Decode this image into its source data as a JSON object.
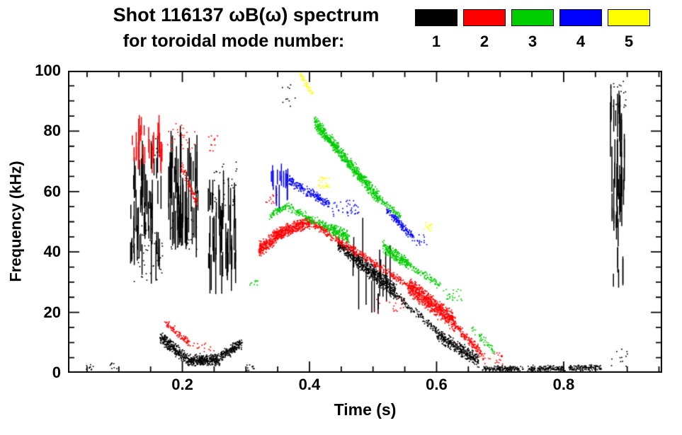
{
  "title": {
    "line1": "Shot 116137 ωB(ω) spectrum",
    "line2": "for toroidal mode number:"
  },
  "legend": {
    "modes": [
      {
        "label": "1",
        "color": "#000000"
      },
      {
        "label": "2",
        "color": "#ff0000"
      },
      {
        "label": "3",
        "color": "#00cc00"
      },
      {
        "label": "4",
        "color": "#0000ff"
      },
      {
        "label": "5",
        "color": "#ffff00"
      }
    ]
  },
  "chart_data": {
    "type": "scatter",
    "title": "Shot 116137 ωB(ω) spectrum for toroidal mode number 1-5",
    "xlabel": "Time (s)",
    "ylabel": "Frequency (kHz)",
    "xlim": [
      0.02,
      0.955
    ],
    "ylim": [
      0,
      100
    ],
    "x_ticks": [
      {
        "v": 0.2,
        "label": "0.2"
      },
      {
        "v": 0.4,
        "label": "0.4"
      },
      {
        "v": 0.6,
        "label": "0.6"
      },
      {
        "v": 0.8,
        "label": "0.8"
      }
    ],
    "x_minor_step": 0.05,
    "y_ticks": [
      {
        "v": 0,
        "label": "0"
      },
      {
        "v": 20,
        "label": "20"
      },
      {
        "v": 40,
        "label": "40"
      },
      {
        "v": 60,
        "label": "60"
      },
      {
        "v": 80,
        "label": "80"
      },
      {
        "v": 100,
        "label": "100"
      }
    ],
    "y_minor_step": 5,
    "series": [
      {
        "name": "n=1",
        "color": "#000000",
        "features": [
          {
            "k": "dots",
            "t": [
              0.045,
              0.062
            ],
            "f": [
              1,
              3
            ],
            "n": 10
          },
          {
            "k": "dots",
            "t": [
              0.085,
              0.1
            ],
            "f": [
              1,
              4
            ],
            "n": 8
          },
          {
            "k": "streaks",
            "t": [
              0.118,
              0.168
            ],
            "f": [
              34,
              74
            ],
            "n": 55,
            "l": [
              4,
              16
            ]
          },
          {
            "k": "dots",
            "t": [
              0.118,
              0.168
            ],
            "f": [
              30,
              50
            ],
            "n": 40
          },
          {
            "k": "dots",
            "t": [
              0.148,
              0.166
            ],
            "f": [
              70,
              79
            ],
            "n": 10
          },
          {
            "k": "streaks",
            "t": [
              0.178,
              0.225
            ],
            "f": [
              46,
              74
            ],
            "n": 60,
            "l": [
              5,
              18
            ]
          },
          {
            "k": "dots",
            "t": [
              0.178,
              0.225
            ],
            "f": [
              40,
              52
            ],
            "n": 25
          },
          {
            "k": "streaks",
            "t": [
              0.24,
              0.285
            ],
            "f": [
              32,
              60
            ],
            "n": 55,
            "l": [
              4,
              16
            ]
          },
          {
            "k": "dots",
            "t": [
              0.24,
              0.285
            ],
            "f": [
              55,
              70
            ],
            "n": 30
          },
          {
            "k": "band",
            "t": [
              0.165,
              0.205
            ],
            "f": [
              12,
              5
            ],
            "w": 2.4,
            "n": 260
          },
          {
            "k": "band",
            "t": [
              0.205,
              0.258
            ],
            "f": [
              4.5,
              4.5
            ],
            "w": 2.2,
            "n": 340
          },
          {
            "k": "band",
            "t": [
              0.258,
              0.292
            ],
            "f": [
              5.5,
              10
            ],
            "w": 2.2,
            "n": 190
          },
          {
            "k": "dots",
            "t": [
              0.295,
              0.315
            ],
            "f": [
              1,
              3
            ],
            "n": 10
          },
          {
            "k": "dots",
            "t": [
              0.355,
              0.378
            ],
            "f": [
              88,
              96
            ],
            "n": 10
          },
          {
            "k": "band",
            "t": [
              0.443,
              0.472
            ],
            "f": [
              43,
              38
            ],
            "w": 2.2,
            "n": 160
          },
          {
            "k": "band",
            "t": [
              0.472,
              0.535
            ],
            "f": [
              38,
              27
            ],
            "w": 3,
            "n": 450
          },
          {
            "k": "streaks",
            "t": [
              0.468,
              0.53
            ],
            "f": [
              20,
              43
            ],
            "n": 15,
            "l": [
              5,
              18
            ]
          },
          {
            "k": "band",
            "t": [
              0.535,
              0.6
            ],
            "f": [
              26,
              14
            ],
            "w": 1.5,
            "n": 130
          },
          {
            "k": "band",
            "t": [
              0.6,
              0.665
            ],
            "f": [
              13,
              4
            ],
            "w": 2.5,
            "n": 360
          },
          {
            "k": "band",
            "t": [
              0.672,
              0.735
            ],
            "f": [
              1.6,
              1.6
            ],
            "w": 1.1,
            "n": 150
          },
          {
            "k": "band",
            "t": [
              0.742,
              0.8
            ],
            "f": [
              1.6,
              1.6
            ],
            "w": 1.1,
            "n": 140
          },
          {
            "k": "band",
            "t": [
              0.807,
              0.858
            ],
            "f": [
              1.8,
              1.8
            ],
            "w": 1.1,
            "n": 120
          },
          {
            "k": "streaks",
            "t": [
              0.873,
              0.896
            ],
            "f": [
              55,
              90
            ],
            "n": 35,
            "l": [
              5,
              20
            ]
          },
          {
            "k": "dots",
            "t": [
              0.873,
              0.897
            ],
            "f": [
              88,
              97
            ],
            "n": 20
          },
          {
            "k": "streaks",
            "t": [
              0.875,
              0.894
            ],
            "f": [
              30,
              55
            ],
            "n": 14,
            "l": [
              3,
              10
            ]
          },
          {
            "k": "dots",
            "t": [
              0.868,
              0.9
            ],
            "f": [
              2,
              8
            ],
            "n": 12
          }
        ]
      },
      {
        "name": "n=2",
        "color": "#ff0000",
        "features": [
          {
            "k": "streaks",
            "t": [
              0.118,
              0.168
            ],
            "f": [
              70,
              82
            ],
            "n": 28,
            "l": [
              3,
              10
            ]
          },
          {
            "k": "dots",
            "t": [
              0.175,
              0.22
            ],
            "f": [
              73,
              83
            ],
            "n": 28
          },
          {
            "k": "band",
            "t": [
              0.197,
              0.222
            ],
            "f": [
              69,
              56
            ],
            "w": 2,
            "n": 70
          },
          {
            "k": "dots",
            "t": [
              0.238,
              0.255
            ],
            "f": [
              73,
              79
            ],
            "n": 12
          },
          {
            "k": "band",
            "t": [
              0.172,
              0.21
            ],
            "f": [
              17,
              10
            ],
            "w": 1.5,
            "n": 90
          },
          {
            "k": "dots",
            "t": [
              0.21,
              0.25
            ],
            "f": [
              7,
              10
            ],
            "n": 16
          },
          {
            "k": "band",
            "t": [
              0.32,
              0.358
            ],
            "f": [
              41,
              47
            ],
            "w": 2.8,
            "n": 340
          },
          {
            "k": "band",
            "t": [
              0.358,
              0.4
            ],
            "f": [
              47,
              50
            ],
            "w": 2.4,
            "n": 300
          },
          {
            "k": "band",
            "t": [
              0.4,
              0.49
            ],
            "f": [
              50,
              38
            ],
            "w": 1.7,
            "n": 260
          },
          {
            "k": "band",
            "t": [
              0.49,
              0.555
            ],
            "f": [
              38,
              29
            ],
            "w": 1.5,
            "n": 130
          },
          {
            "k": "band",
            "t": [
              0.555,
              0.628
            ],
            "f": [
              29,
              17
            ],
            "w": 3.5,
            "n": 680
          },
          {
            "k": "band",
            "t": [
              0.628,
              0.672
            ],
            "f": [
              16,
              6
            ],
            "w": 1.8,
            "n": 150
          },
          {
            "k": "dots",
            "t": [
              0.672,
              0.705
            ],
            "f": [
              3,
              7
            ],
            "n": 22
          },
          {
            "k": "dots",
            "t": [
              0.328,
              0.35
            ],
            "f": [
              56,
              60
            ],
            "n": 12
          },
          {
            "k": "dots",
            "t": [
              0.5,
              0.548
            ],
            "f": [
              20,
              25
            ],
            "n": 18
          }
        ]
      },
      {
        "name": "n=3",
        "color": "#00cc00",
        "features": [
          {
            "k": "band",
            "t": [
              0.408,
              0.508
            ],
            "f": [
              83,
              58
            ],
            "w": 2.6,
            "n": 750
          },
          {
            "k": "band",
            "t": [
              0.508,
              0.542
            ],
            "f": [
              58,
              52
            ],
            "w": 1.5,
            "n": 80
          },
          {
            "k": "band",
            "t": [
              0.337,
              0.366
            ],
            "f": [
              52,
              56
            ],
            "w": 1.5,
            "n": 80
          },
          {
            "k": "band",
            "t": [
              0.366,
              0.432
            ],
            "f": [
              55,
              48
            ],
            "w": 1.6,
            "n": 160
          },
          {
            "k": "band",
            "t": [
              0.432,
              0.462
            ],
            "f": [
              48,
              45
            ],
            "w": 2.2,
            "n": 170
          },
          {
            "k": "band",
            "t": [
              0.515,
              0.555
            ],
            "f": [
              42,
              36
            ],
            "w": 2.2,
            "n": 230
          },
          {
            "k": "band",
            "t": [
              0.555,
              0.605
            ],
            "f": [
              36,
              29
            ],
            "w": 1.5,
            "n": 90
          },
          {
            "k": "dots",
            "t": [
              0.605,
              0.64
            ],
            "f": [
              24,
              28
            ],
            "n": 24
          },
          {
            "k": "band",
            "t": [
              0.655,
              0.69
            ],
            "f": [
              15,
              7
            ],
            "w": 1.5,
            "n": 45
          },
          {
            "k": "dots",
            "t": [
              0.305,
              0.318
            ],
            "f": [
              29,
              32
            ],
            "n": 10
          }
        ]
      },
      {
        "name": "n=4",
        "color": "#0000ff",
        "features": [
          {
            "k": "streaks",
            "t": [
              0.34,
              0.366
            ],
            "f": [
              58,
              67
            ],
            "n": 16,
            "l": [
              3,
              9
            ]
          },
          {
            "k": "band",
            "t": [
              0.366,
              0.43
            ],
            "f": [
              64,
              56
            ],
            "w": 1.8,
            "n": 210
          },
          {
            "k": "dots",
            "t": [
              0.435,
              0.478
            ],
            "f": [
              52,
              58
            ],
            "n": 40
          },
          {
            "k": "band",
            "t": [
              0.52,
              0.562
            ],
            "f": [
              54,
              45
            ],
            "w": 1.6,
            "n": 150
          },
          {
            "k": "dots",
            "t": [
              0.563,
              0.585
            ],
            "f": [
              42,
              46
            ],
            "n": 15
          }
        ]
      },
      {
        "name": "n=5",
        "color": "#ffff00",
        "features": [
          {
            "k": "band",
            "t": [
              0.385,
              0.405
            ],
            "f": [
              99,
              92
            ],
            "w": 1.3,
            "n": 45
          },
          {
            "k": "dots",
            "t": [
              0.413,
              0.43
            ],
            "f": [
              61,
              65
            ],
            "n": 28
          },
          {
            "k": "dots",
            "t": [
              0.578,
              0.592
            ],
            "f": [
              47,
              50
            ],
            "n": 15
          }
        ]
      }
    ]
  }
}
